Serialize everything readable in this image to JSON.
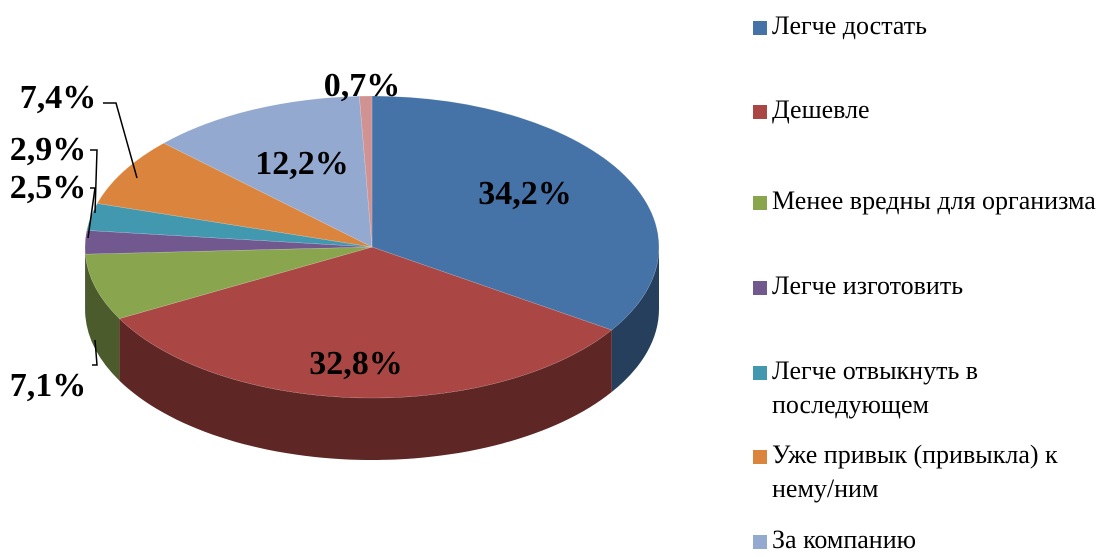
{
  "chart_data": {
    "type": "pie",
    "three_d": true,
    "categories": [
      "Легче достать",
      "Дешевле",
      "Менее вредны для организма",
      "Легче изготовить",
      "Легче отвыкнуть в последующем",
      "Уже привык (привыкла) к нему/ним",
      "За компанию",
      null
    ],
    "values": [
      34.2,
      32.8,
      7.1,
      2.5,
      2.9,
      7.4,
      12.2,
      0.7
    ],
    "value_labels": [
      "34,2%",
      "32,8%",
      "7,1%",
      "2,5%",
      "2,9%",
      "7,4%",
      "12,2%",
      "0,7%"
    ],
    "colors": [
      "#4572a7",
      "#aa4643",
      "#89a54e",
      "#71588f",
      "#4198af",
      "#db843d",
      "#93a9cf",
      "#d19392"
    ],
    "legend": "right"
  }
}
